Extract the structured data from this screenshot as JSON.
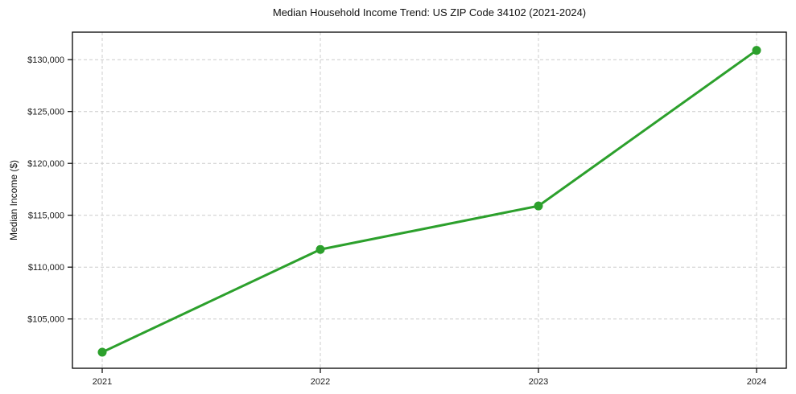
{
  "chart_data": {
    "type": "line",
    "title": "Median Household Income Trend: US ZIP Code 34102 (2021-2024)",
    "xlabel": "",
    "ylabel": "Median Income ($)",
    "categories": [
      "2021",
      "2022",
      "2023",
      "2024"
    ],
    "values": [
      101800,
      111700,
      115900,
      130900
    ],
    "value_labels": [
      "$101,800",
      "$111,700",
      "$115,900",
      "$130,900"
    ],
    "ylim": [
      100250,
      132650
    ],
    "yticks": [
      105000,
      110000,
      115000,
      120000,
      125000,
      130000
    ],
    "ytick_labels": [
      "$105,000",
      "$110,000",
      "$115,000",
      "$120,000",
      "$125,000",
      "$130,000"
    ],
    "grid": true,
    "grid_style": "dashed",
    "legend": "none",
    "line_color": "#2ca02c",
    "marker_color": "#2ca02c",
    "grid_color": "#cccccc",
    "axis_color": "#000000",
    "text_color": "#1a1a1a"
  }
}
